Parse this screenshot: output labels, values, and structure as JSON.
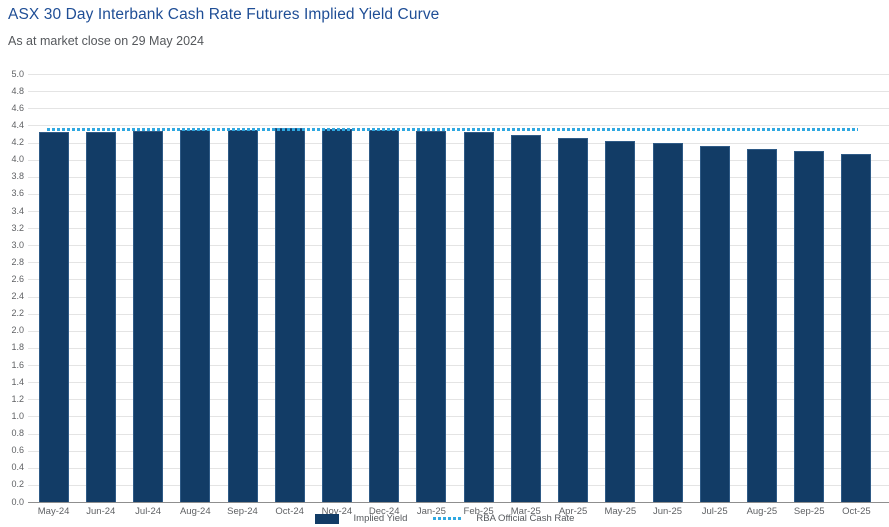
{
  "header": {
    "title": "ASX 30 Day Interbank Cash Rate Futures Implied Yield Curve",
    "subtitle": "As at market close on 29 May 2024"
  },
  "chart_data": {
    "type": "bar",
    "title": "ASX 30 Day Interbank Cash Rate Futures Implied Yield Curve",
    "subtitle": "As at market close on 29 May 2024",
    "xlabel": "",
    "ylabel": "",
    "ylim": [
      0.0,
      5.0
    ],
    "ytick_step": 0.2,
    "ytick_decimals": 1,
    "grid": true,
    "legend_position": "bottom-center",
    "categories": [
      "May-24",
      "Jun-24",
      "Jul-24",
      "Aug-24",
      "Sep-24",
      "Oct-24",
      "Nov-24",
      "Dec-24",
      "Jan-25",
      "Feb-25",
      "Mar-25",
      "Apr-25",
      "May-25",
      "Jun-25",
      "Jul-25",
      "Aug-25",
      "Sep-25",
      "Oct-25"
    ],
    "series": [
      {
        "name": "Implied Yield",
        "type": "bar",
        "color": "#123c66",
        "values": [
          4.32,
          4.32,
          4.33,
          4.35,
          4.35,
          4.37,
          4.36,
          4.35,
          4.34,
          4.32,
          4.29,
          4.25,
          4.22,
          4.19,
          4.16,
          4.12,
          4.1,
          4.07
        ]
      },
      {
        "name": "RBA Official Cash Rate",
        "type": "dashed-line",
        "color": "#2fa8e1",
        "value": 4.35
      }
    ]
  },
  "colors": {
    "title": "#1f4e96",
    "subtitle": "#55585c",
    "bar": "#123c66",
    "rba_line": "#2fa8e1",
    "gridline": "#e4e4e4",
    "axis_line": "#8f8f8f",
    "tick_label": "#5f6164"
  }
}
